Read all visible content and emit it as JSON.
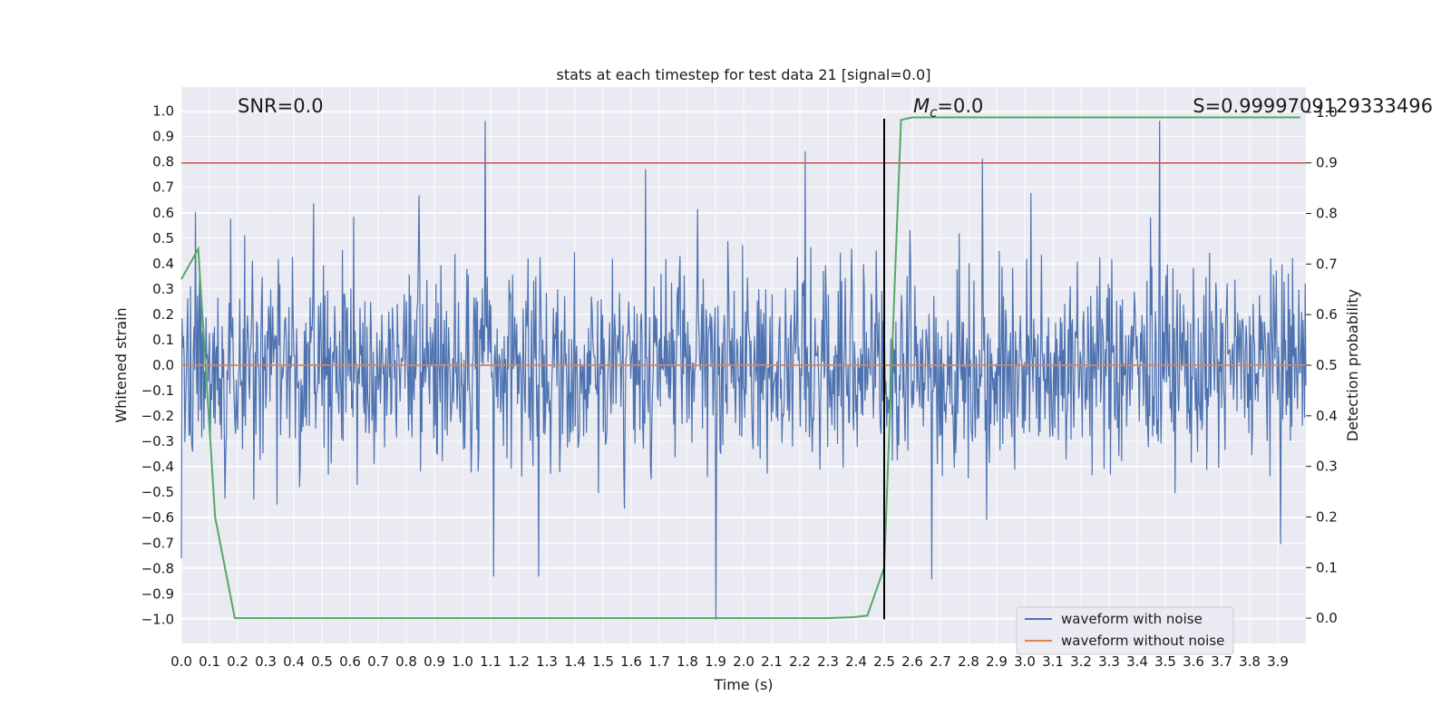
{
  "chart_data": {
    "type": "line",
    "title": "stats at each timestep for test data 21 [signal=0.0]",
    "xlabel": "Time (s)",
    "ylabel": "Whitened strain",
    "y2label": "Detection probability",
    "xlim": [
      0.0,
      4.0
    ],
    "ylim": [
      -1.095,
      1.095
    ],
    "y2lim": [
      -0.05,
      1.05
    ],
    "x_ticks": [
      0.0,
      0.1,
      0.2,
      0.3,
      0.4,
      0.5,
      0.6,
      0.7,
      0.8,
      0.9,
      1.0,
      1.1,
      1.2,
      1.3,
      1.4,
      1.5,
      1.6,
      1.7,
      1.8,
      1.9,
      2.0,
      2.1,
      2.2,
      2.3,
      2.4,
      2.5,
      2.6,
      2.7,
      2.8,
      2.9,
      3.0,
      3.1,
      3.2,
      3.3,
      3.4,
      3.5,
      3.6,
      3.7,
      3.8,
      3.9
    ],
    "x_tick_labels": [
      "0.0",
      "0.1",
      "0.2",
      "0.3",
      "0.4",
      "0.5",
      "0.6",
      "0.7",
      "0.8",
      "0.9",
      "1.0",
      "1.1",
      "1.2",
      "1.3",
      "1.4",
      "1.5",
      "1.6",
      "1.7",
      "1.8",
      "1.9",
      "2.0",
      "2.1",
      "2.2",
      "2.3",
      "2.4",
      "2.5",
      "2.6",
      "2.7",
      "2.8",
      "2.9",
      "3.0",
      "3.1",
      "3.2",
      "3.3",
      "3.4",
      "3.5",
      "3.6",
      "3.7",
      "3.8",
      "3.9"
    ],
    "y_ticks": [
      1.0,
      0.9,
      0.8,
      0.7,
      0.6,
      0.5,
      0.4,
      0.3,
      0.2,
      0.1,
      0.0,
      -0.1,
      -0.2,
      -0.3,
      -0.4,
      -0.5,
      -0.6,
      -0.7,
      -0.8,
      -0.9,
      -1.0
    ],
    "y_tick_labels": [
      "1.0",
      "0.9",
      "0.8",
      "0.7",
      "0.6",
      "0.5",
      "0.4",
      "0.3",
      "0.2",
      "0.1",
      "0.0",
      "−0.1",
      "−0.2",
      "−0.3",
      "−0.4",
      "−0.5",
      "−0.6",
      "−0.7",
      "−0.8",
      "−0.9",
      "−1.0"
    ],
    "y2_ticks": [
      1.0,
      0.9,
      0.8,
      0.7,
      0.6,
      0.5,
      0.4,
      0.3,
      0.2,
      0.1,
      0.0
    ],
    "y2_tick_labels": [
      "1.0",
      "0.9",
      "0.8",
      "0.7",
      "0.6",
      "0.5",
      "0.4",
      "0.3",
      "0.2",
      "0.1",
      "0.0"
    ],
    "threshold": {
      "value": 0.9,
      "axis": "y2",
      "color": "#c44e52"
    },
    "vline": {
      "x": 2.5,
      "color": "#000000"
    },
    "series": [
      {
        "name": "waveform with noise",
        "axis": "y",
        "color": "#4c72b0",
        "kind": "noise",
        "x_range": [
          0.0,
          4.0
        ],
        "approx_envelope": [
          -0.5,
          0.5
        ],
        "spikes": [
          {
            "x": 1.08,
            "y": 0.96
          },
          {
            "x": 2.22,
            "y": 0.84
          },
          {
            "x": 2.85,
            "y": 0.81
          },
          {
            "x": 3.48,
            "y": 0.96
          },
          {
            "x": 1.65,
            "y": 0.77
          },
          {
            "x": 1.9,
            "y": -1.0
          },
          {
            "x": 0.0,
            "y": -0.76
          },
          {
            "x": 2.67,
            "y": -0.84
          },
          {
            "x": 1.11,
            "y": -0.83
          },
          {
            "x": 1.27,
            "y": -0.83
          },
          {
            "x": 0.05,
            "y": 0.6
          }
        ]
      },
      {
        "name": "waveform without noise",
        "axis": "y",
        "color": "#dd8452",
        "x": [
          0.0,
          4.0
        ],
        "y": [
          0.0,
          0.0
        ]
      },
      {
        "name": "detection probability",
        "axis": "y2",
        "color": "#55a868",
        "x": [
          0.0,
          0.06,
          0.12,
          0.19,
          0.3,
          1.0,
          1.9,
          2.3,
          2.39,
          2.44,
          2.5,
          2.52,
          2.54,
          2.56,
          2.6,
          3.0,
          3.5,
          3.98
        ],
        "y": [
          0.67,
          0.73,
          0.2,
          0.0,
          0.0,
          0.0,
          0.0,
          0.0,
          0.002,
          0.005,
          0.1,
          0.4,
          0.7,
          0.985,
          0.99,
          0.99,
          0.99,
          0.99
        ]
      }
    ],
    "legend": {
      "position": "lower-right",
      "entries": [
        {
          "label": "waveform with noise",
          "color": "#4c72b0"
        },
        {
          "label": "waveform without noise",
          "color": "#dd8452"
        }
      ]
    },
    "annotations": {
      "snr": "SNR=0.0",
      "mc_symbol": "M",
      "mc_subscript": "c",
      "mc_value": "=0.0",
      "score": "S=0.9999709129333496"
    },
    "grid": true
  }
}
